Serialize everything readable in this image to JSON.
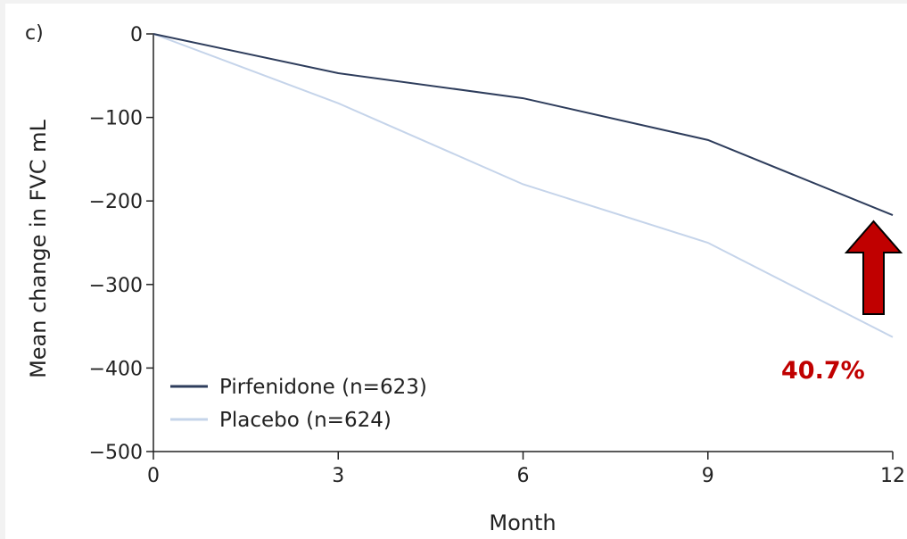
{
  "panel_label": "c)",
  "chart_data": {
    "type": "line",
    "title": "",
    "xlabel": "Month",
    "ylabel": "Mean change in FVC mL",
    "x": [
      0,
      3,
      6,
      9,
      12
    ],
    "xlim": [
      0,
      12
    ],
    "ylim": [
      -500,
      0
    ],
    "xticks": [
      "0",
      "3",
      "6",
      "9",
      "12"
    ],
    "yticks": [
      "0",
      "−100",
      "−200",
      "−300",
      "−400",
      "−500"
    ],
    "ytick_values": [
      0,
      -100,
      -200,
      -300,
      -400,
      -500
    ],
    "grid": false,
    "legend_position": "bottom-left",
    "series": [
      {
        "name": "Pirfenidone (n=623)",
        "color": "#2e3d5c",
        "values": [
          0,
          -47,
          -77,
          -127,
          -217
        ]
      },
      {
        "name": "Placebo (n=624)",
        "color": "#c5d4ea",
        "values": [
          0,
          -83,
          -180,
          -250,
          -363
        ]
      }
    ],
    "annotation": {
      "text": "40.7%",
      "color": "#c00000",
      "arrow": "up-arrow-icon"
    }
  }
}
